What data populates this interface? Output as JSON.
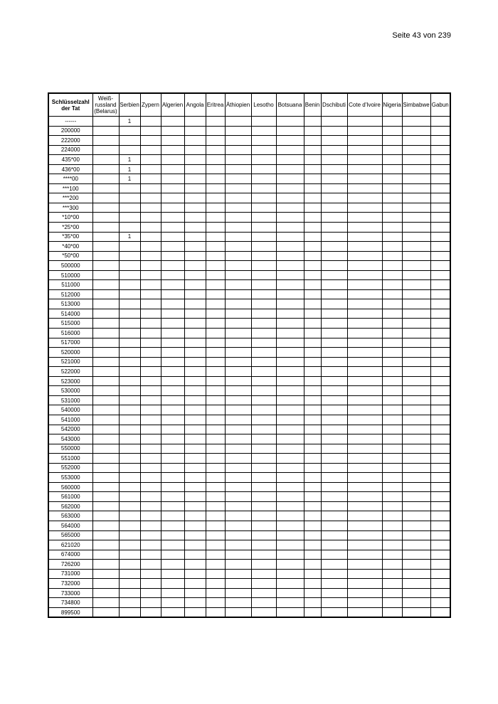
{
  "page": {
    "label": "Seite",
    "number": "43",
    "of": "von",
    "total": "239"
  },
  "table": {
    "headers": [
      "Schlüsselzahl<br>der Tat",
      "Weiß-<br>russland<br>(Belarus)",
      "Serbien",
      "Zypern",
      "Algerien",
      "Angola",
      "Eritrea",
      "Äthiopien",
      "Lesotho",
      "Botsuana",
      "Benin",
      "Dschibuti",
      "Cote d'Ivoire",
      "Nigeria",
      "Simbabwe",
      "Gabun"
    ],
    "rows": [
      [
        "------",
        "",
        "1",
        "",
        "",
        "",
        "",
        "",
        "",
        "",
        "",
        "",
        "",
        "",
        "",
        ""
      ],
      [
        "200000",
        "",
        "",
        "",
        "",
        "",
        "",
        "",
        "",
        "",
        "",
        "",
        "",
        "",
        "",
        ""
      ],
      [
        "222000",
        "",
        "",
        "",
        "",
        "",
        "",
        "",
        "",
        "",
        "",
        "",
        "",
        "",
        "",
        ""
      ],
      [
        "224000",
        "",
        "",
        "",
        "",
        "",
        "",
        "",
        "",
        "",
        "",
        "",
        "",
        "",
        "",
        ""
      ],
      [
        "435*00",
        "",
        "1",
        "",
        "",
        "",
        "",
        "",
        "",
        "",
        "",
        "",
        "",
        "",
        "",
        ""
      ],
      [
        "436*00",
        "",
        "1",
        "",
        "",
        "",
        "",
        "",
        "",
        "",
        "",
        "",
        "",
        "",
        "",
        ""
      ],
      [
        "****00",
        "",
        "1",
        "",
        "",
        "",
        "",
        "",
        "",
        "",
        "",
        "",
        "",
        "",
        "",
        ""
      ],
      [
        "***100",
        "",
        "",
        "",
        "",
        "",
        "",
        "",
        "",
        "",
        "",
        "",
        "",
        "",
        "",
        ""
      ],
      [
        "***200",
        "",
        "",
        "",
        "",
        "",
        "",
        "",
        "",
        "",
        "",
        "",
        "",
        "",
        "",
        ""
      ],
      [
        "***300",
        "",
        "",
        "",
        "",
        "",
        "",
        "",
        "",
        "",
        "",
        "",
        "",
        "",
        "",
        ""
      ],
      [
        "*10*00",
        "",
        "",
        "",
        "",
        "",
        "",
        "",
        "",
        "",
        "",
        "",
        "",
        "",
        "",
        ""
      ],
      [
        "*25*00",
        "",
        "",
        "",
        "",
        "",
        "",
        "",
        "",
        "",
        "",
        "",
        "",
        "",
        "",
        ""
      ],
      [
        "*35*00",
        "",
        "1",
        "",
        "",
        "",
        "",
        "",
        "",
        "",
        "",
        "",
        "",
        "",
        "",
        ""
      ],
      [
        "*40*00",
        "",
        "",
        "",
        "",
        "",
        "",
        "",
        "",
        "",
        "",
        "",
        "",
        "",
        "",
        ""
      ],
      [
        "*50*00",
        "",
        "",
        "",
        "",
        "",
        "",
        "",
        "",
        "",
        "",
        "",
        "",
        "",
        "",
        ""
      ],
      [
        "500000",
        "",
        "",
        "",
        "",
        "",
        "",
        "",
        "",
        "",
        "",
        "",
        "",
        "",
        "",
        ""
      ],
      [
        "510000",
        "",
        "",
        "",
        "",
        "",
        "",
        "",
        "",
        "",
        "",
        "",
        "",
        "",
        "",
        ""
      ],
      [
        "511000",
        "",
        "",
        "",
        "",
        "",
        "",
        "",
        "",
        "",
        "",
        "",
        "",
        "",
        "",
        ""
      ],
      [
        "512000",
        "",
        "",
        "",
        "",
        "",
        "",
        "",
        "",
        "",
        "",
        "",
        "",
        "",
        "",
        ""
      ],
      [
        "513000",
        "",
        "",
        "",
        "",
        "",
        "",
        "",
        "",
        "",
        "",
        "",
        "",
        "",
        "",
        ""
      ],
      [
        "514000",
        "",
        "",
        "",
        "",
        "",
        "",
        "",
        "",
        "",
        "",
        "",
        "",
        "",
        "",
        ""
      ],
      [
        "515000",
        "",
        "",
        "",
        "",
        "",
        "",
        "",
        "",
        "",
        "",
        "",
        "",
        "",
        "",
        ""
      ],
      [
        "516000",
        "",
        "",
        "",
        "",
        "",
        "",
        "",
        "",
        "",
        "",
        "",
        "",
        "",
        "",
        ""
      ],
      [
        "517000",
        "",
        "",
        "",
        "",
        "",
        "",
        "",
        "",
        "",
        "",
        "",
        "",
        "",
        "",
        ""
      ],
      [
        "520000",
        "",
        "",
        "",
        "",
        "",
        "",
        "",
        "",
        "",
        "",
        "",
        "",
        "",
        "",
        ""
      ],
      [
        "521000",
        "",
        "",
        "",
        "",
        "",
        "",
        "",
        "",
        "",
        "",
        "",
        "",
        "",
        "",
        ""
      ],
      [
        "522000",
        "",
        "",
        "",
        "",
        "",
        "",
        "",
        "",
        "",
        "",
        "",
        "",
        "",
        "",
        ""
      ],
      [
        "523000",
        "",
        "",
        "",
        "",
        "",
        "",
        "",
        "",
        "",
        "",
        "",
        "",
        "",
        "",
        ""
      ],
      [
        "530000",
        "",
        "",
        "",
        "",
        "",
        "",
        "",
        "",
        "",
        "",
        "",
        "",
        "",
        "",
        ""
      ],
      [
        "531000",
        "",
        "",
        "",
        "",
        "",
        "",
        "",
        "",
        "",
        "",
        "",
        "",
        "",
        "",
        ""
      ],
      [
        "540000",
        "",
        "",
        "",
        "",
        "",
        "",
        "",
        "",
        "",
        "",
        "",
        "",
        "",
        "",
        ""
      ],
      [
        "541000",
        "",
        "",
        "",
        "",
        "",
        "",
        "",
        "",
        "",
        "",
        "",
        "",
        "",
        "",
        ""
      ],
      [
        "542000",
        "",
        "",
        "",
        "",
        "",
        "",
        "",
        "",
        "",
        "",
        "",
        "",
        "",
        "",
        ""
      ],
      [
        "543000",
        "",
        "",
        "",
        "",
        "",
        "",
        "",
        "",
        "",
        "",
        "",
        "",
        "",
        "",
        ""
      ],
      [
        "550000",
        "",
        "",
        "",
        "",
        "",
        "",
        "",
        "",
        "",
        "",
        "",
        "",
        "",
        "",
        ""
      ],
      [
        "551000",
        "",
        "",
        "",
        "",
        "",
        "",
        "",
        "",
        "",
        "",
        "",
        "",
        "",
        "",
        ""
      ],
      [
        "552000",
        "",
        "",
        "",
        "",
        "",
        "",
        "",
        "",
        "",
        "",
        "",
        "",
        "",
        "",
        ""
      ],
      [
        "553000",
        "",
        "",
        "",
        "",
        "",
        "",
        "",
        "",
        "",
        "",
        "",
        "",
        "",
        "",
        ""
      ],
      [
        "560000",
        "",
        "",
        "",
        "",
        "",
        "",
        "",
        "",
        "",
        "",
        "",
        "",
        "",
        "",
        ""
      ],
      [
        "561000",
        "",
        "",
        "",
        "",
        "",
        "",
        "",
        "",
        "",
        "",
        "",
        "",
        "",
        "",
        ""
      ],
      [
        "562000",
        "",
        "",
        "",
        "",
        "",
        "",
        "",
        "",
        "",
        "",
        "",
        "",
        "",
        "",
        ""
      ],
      [
        "563000",
        "",
        "",
        "",
        "",
        "",
        "",
        "",
        "",
        "",
        "",
        "",
        "",
        "",
        "",
        ""
      ],
      [
        "564000",
        "",
        "",
        "",
        "",
        "",
        "",
        "",
        "",
        "",
        "",
        "",
        "",
        "",
        "",
        ""
      ],
      [
        "565000",
        "",
        "",
        "",
        "",
        "",
        "",
        "",
        "",
        "",
        "",
        "",
        "",
        "",
        "",
        ""
      ],
      [
        "621020",
        "",
        "",
        "",
        "",
        "",
        "",
        "",
        "",
        "",
        "",
        "",
        "",
        "",
        "",
        ""
      ],
      [
        "674000",
        "",
        "",
        "",
        "",
        "",
        "",
        "",
        "",
        "",
        "",
        "",
        "",
        "",
        "",
        ""
      ],
      [
        "726200",
        "",
        "",
        "",
        "",
        "",
        "",
        "",
        "",
        "",
        "",
        "",
        "",
        "",
        "",
        ""
      ],
      [
        "731000",
        "",
        "",
        "",
        "",
        "",
        "",
        "",
        "",
        "",
        "",
        "",
        "",
        "",
        "",
        ""
      ],
      [
        "732000",
        "",
        "",
        "",
        "",
        "",
        "",
        "",
        "",
        "",
        "",
        "",
        "",
        "",
        "",
        ""
      ],
      [
        "733000",
        "",
        "",
        "",
        "",
        "",
        "",
        "",
        "",
        "",
        "",
        "",
        "",
        "",
        "",
        ""
      ],
      [
        "734800",
        "",
        "",
        "",
        "",
        "",
        "",
        "",
        "",
        "",
        "",
        "",
        "",
        "",
        "",
        ""
      ],
      [
        "899500",
        "",
        "",
        "",
        "",
        "",
        "",
        "",
        "",
        "",
        "",
        "",
        "",
        "",
        "",
        ""
      ]
    ]
  }
}
